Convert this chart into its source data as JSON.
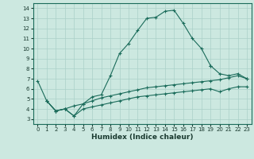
{
  "xlabel": "Humidex (Indice chaleur)",
  "bg_color": "#cce8e0",
  "line_color": "#1a6b5a",
  "grid_color": "#aad0c8",
  "xlim": [
    -0.5,
    23.5
  ],
  "ylim": [
    2.5,
    14.5
  ],
  "xticks": [
    0,
    1,
    2,
    3,
    4,
    5,
    6,
    7,
    8,
    9,
    10,
    11,
    12,
    13,
    14,
    15,
    16,
    17,
    18,
    19,
    20,
    21,
    22,
    23
  ],
  "yticks": [
    3,
    4,
    5,
    6,
    7,
    8,
    9,
    10,
    11,
    12,
    13,
    14
  ],
  "lines": [
    {
      "x": [
        0,
        1,
        2,
        3,
        4,
        5,
        6,
        7,
        8,
        9,
        10,
        11,
        12,
        13,
        14,
        15,
        16,
        17,
        18,
        19
      ],
      "y": [
        6.8,
        4.8,
        3.8,
        4.0,
        3.3,
        4.5,
        5.2,
        5.4,
        7.3,
        9.5,
        10.5,
        11.8,
        13.0,
        13.1,
        13.7,
        13.8,
        12.5,
        11.0,
        10.0,
        8.3
      ]
    },
    {
      "x": [
        19,
        20,
        21,
        22,
        23
      ],
      "y": [
        8.3,
        7.5,
        7.3,
        7.5,
        7.0
      ]
    },
    {
      "x": [
        1,
        2,
        3,
        4,
        5,
        6,
        7,
        8,
        9,
        10,
        11,
        12,
        13,
        14,
        15,
        16,
        17,
        18,
        19,
        20,
        21,
        22,
        23
      ],
      "y": [
        4.8,
        3.8,
        4.0,
        4.3,
        4.5,
        4.8,
        5.1,
        5.3,
        5.5,
        5.7,
        5.9,
        6.1,
        6.2,
        6.3,
        6.4,
        6.5,
        6.6,
        6.7,
        6.8,
        6.9,
        7.1,
        7.3,
        7.0
      ]
    },
    {
      "x": [
        1,
        2,
        3,
        4,
        5,
        6,
        7,
        8,
        9,
        10,
        11,
        12,
        13,
        14,
        15,
        16,
        17,
        18,
        19,
        20,
        21,
        22,
        23
      ],
      "y": [
        4.8,
        3.8,
        4.0,
        3.3,
        4.0,
        4.2,
        4.4,
        4.6,
        4.8,
        5.0,
        5.2,
        5.3,
        5.4,
        5.5,
        5.6,
        5.7,
        5.8,
        5.9,
        6.0,
        5.7,
        6.0,
        6.2,
        6.2
      ]
    }
  ]
}
